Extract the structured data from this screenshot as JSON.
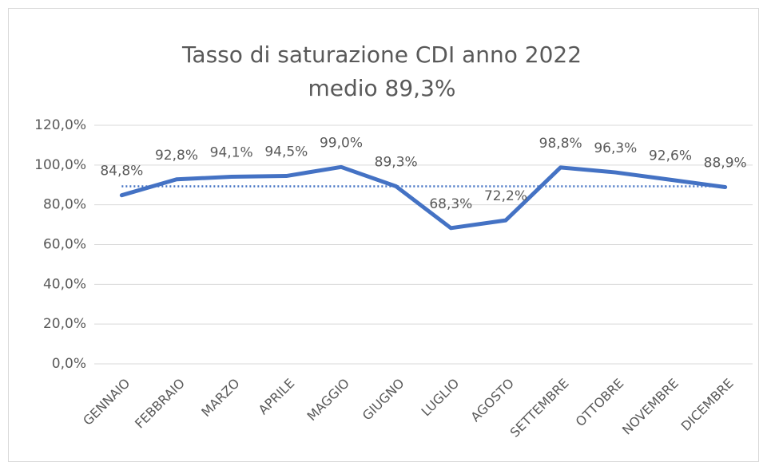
{
  "chart_data": {
    "type": "line",
    "title": [
      "Tasso di saturazione CDI anno 2022",
      "medio 89,3%"
    ],
    "categories": [
      "GENNAIO",
      "FEBBRAIO",
      "MARZO",
      "APRILE",
      "MAGGIO",
      "GIUGNO",
      "LUGLIO",
      "AGOSTO",
      "SETTEMBRE",
      "OTTOBRE",
      "NOVEMBRE",
      "DICEMBRE"
    ],
    "series": [
      {
        "color": "#4472c4",
        "values": [
          84.8,
          92.8,
          94.1,
          94.5,
          99.0,
          89.3,
          68.3,
          72.2,
          98.8,
          96.3,
          92.6,
          88.9
        ],
        "value_labels": [
          "84,8%",
          "92,8%",
          "94,1%",
          "94,5%",
          "99,0%",
          "89,3%",
          "68,3%",
          "72,2%",
          "98,8%",
          "96,3%",
          "92,6%",
          "88,9%"
        ]
      }
    ],
    "reference_lines": [
      {
        "value": 89.3,
        "color": "#4472c4",
        "style": "dotted"
      }
    ],
    "ylim": [
      0,
      120
    ],
    "yticks": [
      {
        "value": 0,
        "label": "0,0%"
      },
      {
        "value": 20,
        "label": "20,0%"
      },
      {
        "value": 40,
        "label": "40,0%"
      },
      {
        "value": 60,
        "label": "60,0%"
      },
      {
        "value": 80,
        "label": "80,0%"
      },
      {
        "value": 100,
        "label": "100,0%"
      },
      {
        "value": 120,
        "label": "120,0%"
      }
    ],
    "grid": true
  }
}
